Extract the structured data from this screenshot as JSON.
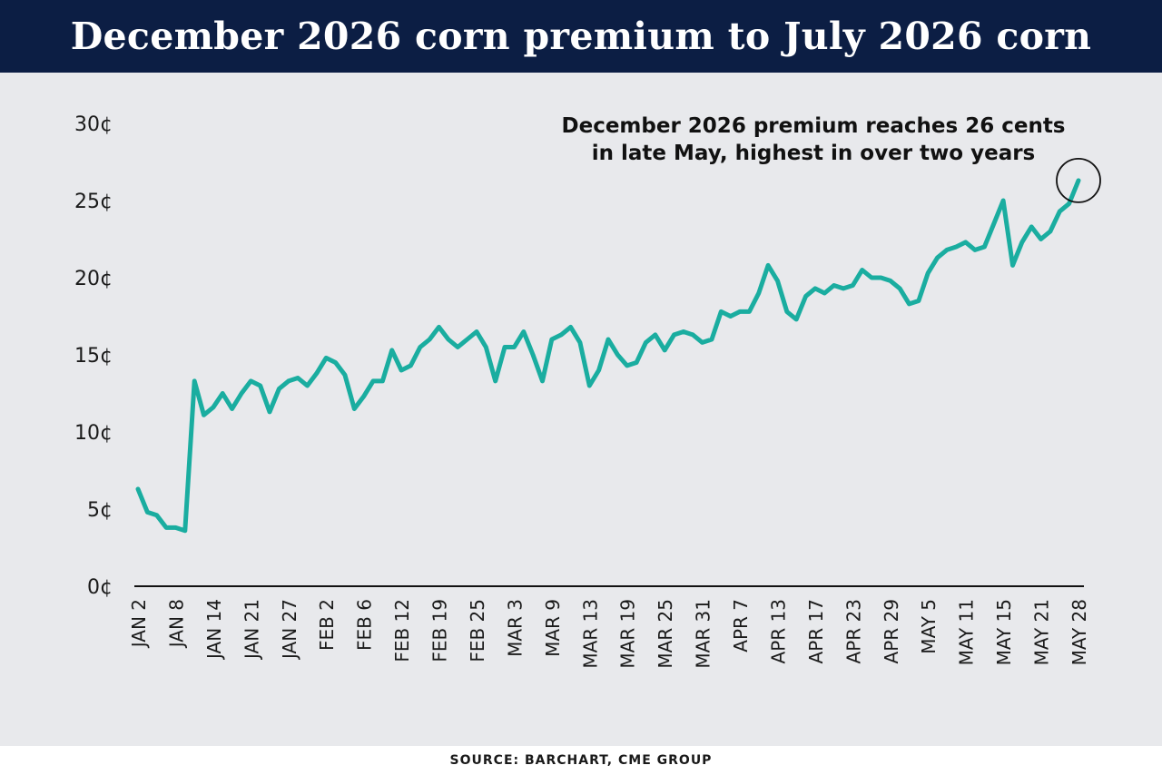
{
  "title": "December 2026 corn premium to July 2026 corn",
  "source": "SOURCE: BARCHART, CME GROUP",
  "colors": {
    "header_bg": "#0c1e44",
    "plot_bg": "#e8e9ec",
    "line": "#1aada0"
  },
  "chart_data": {
    "type": "line",
    "title": "December 2026 corn premium to July 2026 corn",
    "xlabel": "",
    "ylabel": "",
    "ylim": [
      0,
      30
    ],
    "y_ticks": [
      {
        "value": 0,
        "label": "0¢"
      },
      {
        "value": 5,
        "label": "5¢"
      },
      {
        "value": 10,
        "label": "10¢"
      },
      {
        "value": 15,
        "label": "15¢"
      },
      {
        "value": 20,
        "label": "20¢"
      },
      {
        "value": 25,
        "label": "25¢"
      },
      {
        "value": 30,
        "label": "30¢"
      }
    ],
    "x_tick_labels": [
      "JAN 2",
      "JAN 8",
      "JAN 14",
      "JAN 21",
      "JAN 27",
      "FEB 2",
      "FEB 6",
      "FEB 12",
      "FEB 19",
      "FEB 25",
      "MAR 3",
      "MAR 9",
      "MAR 13",
      "MAR 19",
      "MAR 25",
      "MAR 31",
      "APR 7",
      "APR 13",
      "APR 17",
      "APR 23",
      "APR 29",
      "MAY 5",
      "MAY 11",
      "MAY 15",
      "MAY 21",
      "MAY 28"
    ],
    "grid": false,
    "series": [
      {
        "name": "",
        "values": [
          6.3,
          4.8,
          4.6,
          3.8,
          3.8,
          3.6,
          13.3,
          11.1,
          11.6,
          12.5,
          11.5,
          12.5,
          13.3,
          13.0,
          11.3,
          12.8,
          13.3,
          13.5,
          13.0,
          13.8,
          14.8,
          14.5,
          13.7,
          11.5,
          12.3,
          13.3,
          13.3,
          15.3,
          14.0,
          14.3,
          15.5,
          16.0,
          16.8,
          16.0,
          15.5,
          16.0,
          16.5,
          15.5,
          13.3,
          15.5,
          15.5,
          16.5,
          15.0,
          13.3,
          16.0,
          16.3,
          16.8,
          15.8,
          13.0,
          14.0,
          16.0,
          15.0,
          14.3,
          14.5,
          15.8,
          16.3,
          15.3,
          16.3,
          16.5,
          16.3,
          15.8,
          16.0,
          17.8,
          17.5,
          17.8,
          17.8,
          19.0,
          20.8,
          19.8,
          17.8,
          17.3,
          18.8,
          19.3,
          19.0,
          19.5,
          19.3,
          19.5,
          20.5,
          20.0,
          20.0,
          19.8,
          19.3,
          18.3,
          18.5,
          20.3,
          21.3,
          21.8,
          22.0,
          22.3,
          21.8,
          22.0,
          23.5,
          25.0,
          20.8,
          22.3,
          23.3,
          22.5,
          23.0,
          24.3,
          24.8,
          26.3
        ]
      }
    ],
    "annotation": {
      "lines": [
        "December 2026 premium reaches 26 cents",
        "in late May, highest in over two years"
      ],
      "target_index": 100,
      "target_value": 26.3
    }
  }
}
